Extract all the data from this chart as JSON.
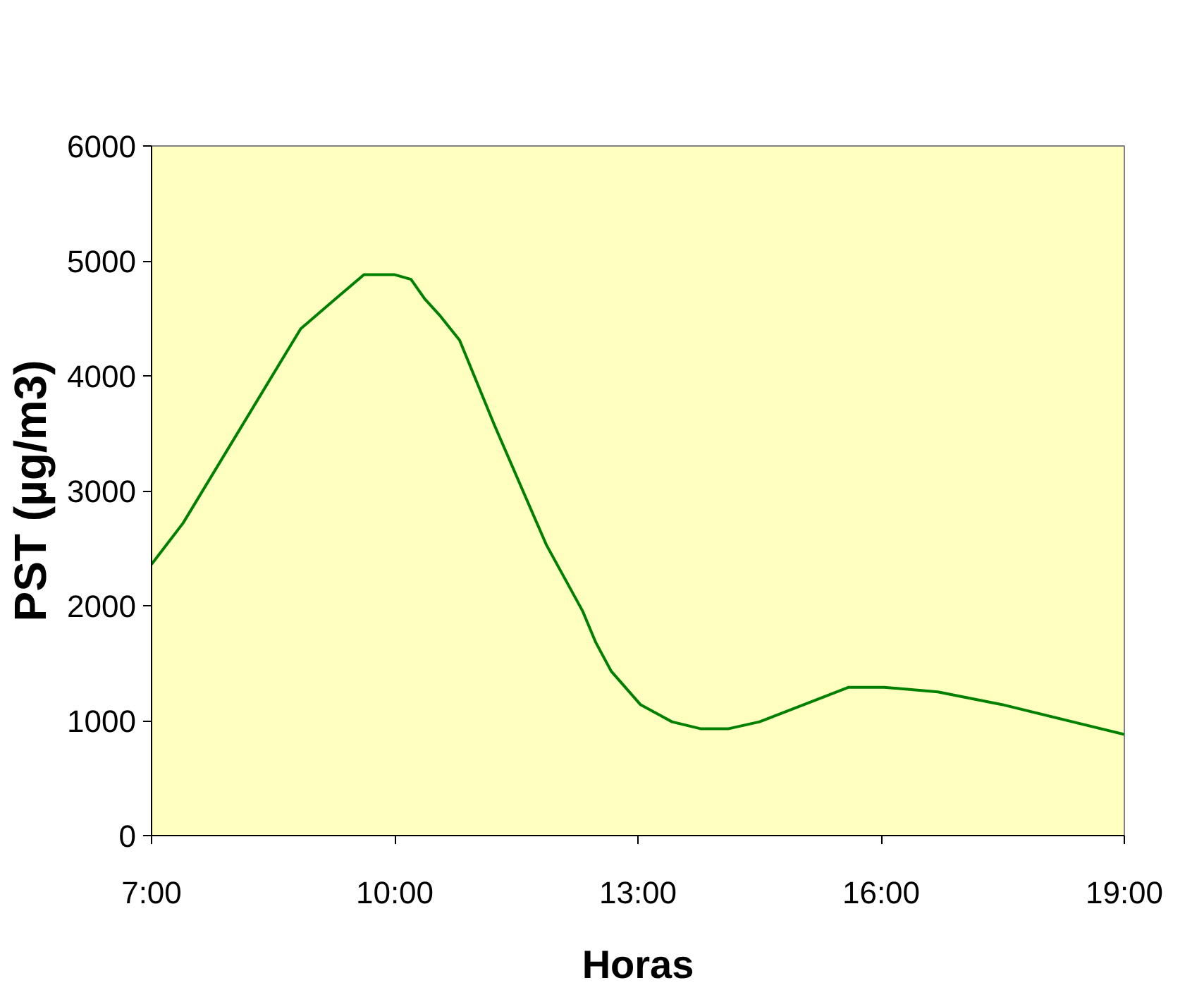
{
  "chart_data": {
    "type": "line",
    "xlabel": "Horas",
    "ylabel": "PST (µg/m3)",
    "x": [
      7.0,
      7.39,
      8.84,
      9.27,
      9.62,
      10.0,
      10.2,
      10.37,
      10.55,
      10.8,
      11.23,
      11.87,
      12.32,
      12.48,
      12.67,
      13.03,
      13.42,
      13.77,
      14.12,
      14.5,
      15.6,
      16.04,
      16.7,
      17.49,
      19.0
    ],
    "series": [
      {
        "color": "#008000",
        "values": [
          2360,
          2720,
          4410,
          4670,
          4880,
          4880,
          4840,
          4670,
          4530,
          4310,
          3570,
          2530,
          1950,
          1680,
          1430,
          1140,
          990,
          930,
          930,
          990,
          1290,
          1290,
          1250,
          1140,
          880
        ]
      }
    ],
    "xlim": [
      7,
      19
    ],
    "xticks": [
      {
        "value": 7,
        "label": "7:00"
      },
      {
        "value": 10,
        "label": "10:00"
      },
      {
        "value": 13,
        "label": "13:00"
      },
      {
        "value": 16,
        "label": "16:00"
      },
      {
        "value": 19,
        "label": "19:00"
      }
    ],
    "ylim": [
      0,
      6000
    ],
    "yticks": [
      0,
      1000,
      2000,
      3000,
      4000,
      5000,
      6000
    ],
    "grid": false,
    "marker": "none",
    "line_style": "solid"
  }
}
